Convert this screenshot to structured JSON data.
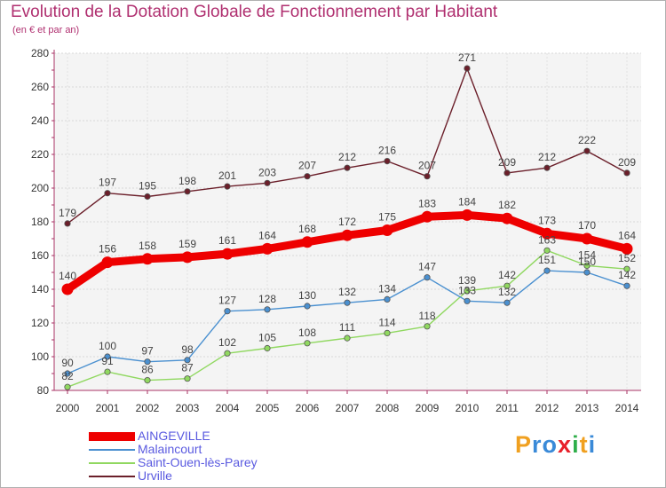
{
  "brand": {
    "letters": [
      "P",
      "r",
      "o",
      "x",
      "i",
      "t",
      "i"
    ],
    "colors": [
      "#f0a020",
      "#3a8ad8",
      "#3a8ad8",
      "#e8202a",
      "#2fae4a",
      "#f0a020",
      "#3a8ad8"
    ]
  },
  "chart_data": {
    "type": "line",
    "title": "Evolution de la Dotation Globale de Fonctionnement par Habitant",
    "subtitle": "(en € et par an)",
    "xlabel": "",
    "ylabel": "",
    "ylim": [
      80,
      280
    ],
    "y_ticks": [
      "80",
      "100",
      "120",
      "140",
      "160",
      "180",
      "200",
      "220",
      "240",
      "260",
      "280"
    ],
    "categories": [
      "2000",
      "2001",
      "2002",
      "2003",
      "2004",
      "2005",
      "2006",
      "2007",
      "2008",
      "2009",
      "2010",
      "2011",
      "2012",
      "2013",
      "2014"
    ],
    "grid": true,
    "legend_position": "bottom-left",
    "series": [
      {
        "name": "Urville",
        "color": "#6b1f2a",
        "emphasis": false,
        "values": [
          179,
          197,
          195,
          198,
          201,
          203,
          207,
          212,
          216,
          207,
          271,
          209,
          212,
          222,
          209
        ],
        "labels": [
          "179",
          "197",
          "195",
          "198",
          "201",
          "203",
          "207",
          "212",
          "216",
          "207",
          "271",
          "209",
          "212",
          "222",
          "209"
        ]
      },
      {
        "name": "Saint-Ouen-lès-Parey",
        "color": "#90d860",
        "emphasis": false,
        "values": [
          82,
          91,
          86,
          87,
          102,
          105,
          108,
          111,
          114,
          118,
          139,
          142,
          163,
          154,
          152
        ],
        "labels": [
          "82",
          "91",
          "86",
          "87",
          "102",
          "105",
          "108",
          "111",
          "114",
          "118",
          "139",
          "142",
          "163",
          "154",
          "152"
        ]
      },
      {
        "name": "Malaincourt",
        "color": "#4a90d0",
        "emphasis": false,
        "values": [
          90,
          100,
          97,
          98,
          127,
          128,
          130,
          132,
          134,
          147,
          133,
          132,
          151,
          150,
          142
        ],
        "labels": [
          "90",
          "100",
          "97",
          "98",
          "127",
          "128",
          "130",
          "132",
          "134",
          "147",
          "133",
          "132",
          "151",
          "150",
          "142"
        ]
      },
      {
        "name": "AINGEVILLE",
        "color": "#ee0000",
        "emphasis": true,
        "values": [
          140,
          156,
          158,
          159,
          161,
          164,
          168,
          172,
          175,
          183,
          184,
          182,
          173,
          170,
          164
        ],
        "labels": [
          "140",
          "156",
          "158",
          "159",
          "161",
          "164",
          "168",
          "172",
          "175",
          "183",
          "184",
          "182",
          "173",
          "170",
          "164"
        ]
      }
    ],
    "legend_order": [
      "AINGEVILLE",
      "Malaincourt",
      "Saint-Ouen-lès-Parey",
      "Urville"
    ]
  }
}
